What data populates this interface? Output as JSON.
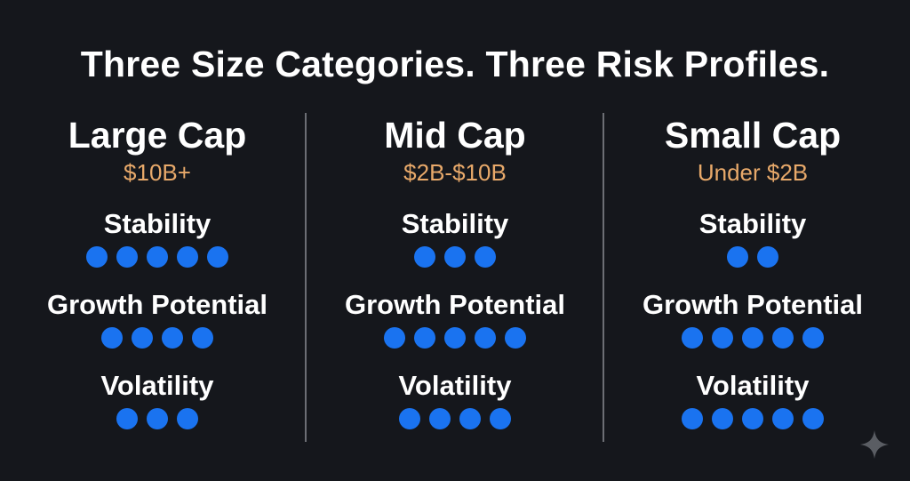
{
  "headline": "Three Size Categories. Three Risk Profiles.",
  "colors": {
    "background": "#15171c",
    "text": "#ffffff",
    "range": "#e8a96a",
    "dot": "#1a73f0",
    "divider": "#8a8c92"
  },
  "columns": [
    {
      "name": "Large Cap",
      "range": "$10B+",
      "metrics": [
        {
          "label": "Stability",
          "score": 5
        },
        {
          "label": "Growth Potential",
          "score": 4
        },
        {
          "label": "Volatility",
          "score": 3
        }
      ]
    },
    {
      "name": "Mid Cap",
      "range": "$2B-$10B",
      "metrics": [
        {
          "label": "Stability",
          "score": 3
        },
        {
          "label": "Growth Potential",
          "score": 5
        },
        {
          "label": "Volatility",
          "score": 4
        }
      ]
    },
    {
      "name": "Small Cap",
      "range": "Under $2B",
      "metrics": [
        {
          "label": "Stability",
          "score": 2
        },
        {
          "label": "Growth Potential",
          "score": 5
        },
        {
          "label": "Volatility",
          "score": 5
        }
      ]
    }
  ],
  "watermark_icon": "sparkle-icon"
}
